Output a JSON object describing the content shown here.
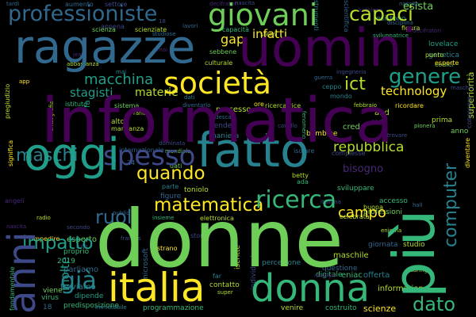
{
  "title": "word cloud",
  "palette": {
    "yellow": "#fde725",
    "lime": "#b5de2b",
    "green": "#6ece58",
    "teal": "#35b779",
    "cyan": "#1f9e89",
    "blue": "#26828e",
    "steel": "#31688e",
    "indigo": "#3e4989",
    "violet": "#482878",
    "purple": "#440154"
  },
  "words": [
    {
      "text": "donne"
    },
    {
      "text": "informatica"
    },
    {
      "text": "più"
    },
    {
      "text": "uomini"
    },
    {
      "text": "ragazze"
    },
    {
      "text": "oggi"
    },
    {
      "text": "fatto"
    },
    {
      "text": "italia"
    },
    {
      "text": "donna"
    },
    {
      "text": "giovani"
    },
    {
      "text": "società"
    },
    {
      "text": "anni"
    },
    {
      "text": "professioniste"
    },
    {
      "text": "capaci"
    },
    {
      "text": "maschi"
    },
    {
      "text": "ricerca"
    },
    {
      "text": "genere"
    },
    {
      "text": "già"
    },
    {
      "text": "spesso"
    },
    {
      "text": "computer"
    },
    {
      "text": "impatto"
    },
    {
      "text": "ruoli"
    },
    {
      "text": "matematica"
    },
    {
      "text": "dato"
    },
    {
      "text": "quando"
    },
    {
      "text": "macchina"
    },
    {
      "text": "infatti"
    },
    {
      "text": "ict"
    },
    {
      "text": "repubblica"
    },
    {
      "text": "stagisti"
    },
    {
      "text": "campo"
    },
    {
      "text": "gap"
    },
    {
      "text": "materie"
    },
    {
      "text": "technology"
    },
    {
      "text": "bisogno"
    },
    {
      "text": "molte"
    },
    {
      "text": "superiorità"
    },
    {
      "text": "esista"
    },
    {
      "text": "esistono"
    },
    {
      "text": "diventare"
    },
    {
      "text": "fondamentale"
    },
    {
      "text": "conoscere"
    },
    {
      "text": "information"
    },
    {
      "text": "programmazione"
    },
    {
      "text": "predisposizione"
    },
    {
      "text": "immutabile"
    },
    {
      "text": "costruito"
    },
    {
      "text": "scienze"
    },
    {
      "text": "venire"
    },
    {
      "text": "virus"
    },
    {
      "text": "dipende"
    },
    {
      "text": "viene"
    },
    {
      "text": "microsoft"
    },
    {
      "text": "iscritte"
    },
    {
      "text": "individuale"
    },
    {
      "text": "scientifica"
    },
    {
      "text": "maschile"
    },
    {
      "text": "maschili"
    },
    {
      "text": "eniac"
    },
    {
      "text": "offerta"
    },
    {
      "text": "giornata"
    },
    {
      "text": "studio"
    },
    {
      "text": "esperto"
    },
    {
      "text": "parliamo"
    },
    {
      "text": "proprio"
    },
    {
      "text": "troviamo"
    },
    {
      "text": "impedire"
    },
    {
      "text": "angeli"
    },
    {
      "text": "significa"
    },
    {
      "text": "crittografia"
    },
    {
      "text": "pregiudizio"
    },
    {
      "text": "abbastanza"
    },
    {
      "text": "tardi"
    },
    {
      "text": "aumento"
    },
    {
      "text": "settore"
    },
    {
      "text": "appena"
    },
    {
      "text": "scientifica"
    },
    {
      "text": "lavori"
    },
    {
      "text": "scienza"
    },
    {
      "text": "scienziate"
    },
    {
      "text": "capacità"
    },
    {
      "text": "stem"
    },
    {
      "text": "strumenti"
    },
    {
      "text": "sviluppatrice"
    },
    {
      "text": "disciplina"
    },
    {
      "text": "lovelace"
    },
    {
      "text": "genetica"
    },
    {
      "text": "codici"
    },
    {
      "text": "punto"
    },
    {
      "text": "esperte"
    },
    {
      "text": "culturale"
    },
    {
      "text": "sebbene"
    },
    {
      "text": "sistema"
    },
    {
      "text": "istituto"
    },
    {
      "text": "diventarlo"
    },
    {
      "text": "ricercatrice"
    },
    {
      "text": "ricordare"
    },
    {
      "text": "febbraio"
    },
    {
      "text": "mondo"
    },
    {
      "text": "ore"
    },
    {
      "text": "guerra"
    },
    {
      "text": "ingegneria"
    },
    {
      "text": "ceppo"
    },
    {
      "text": "figura"
    },
    {
      "text": "prima"
    },
    {
      "text": "pionera"
    },
    {
      "text": "trovare"
    },
    {
      "text": "sorta"
    },
    {
      "text": "bambine"
    },
    {
      "text": "fenomeno"
    },
    {
      "text": "processo"
    },
    {
      "text": "alto"
    },
    {
      "text": "gender"
    },
    {
      "text": "cavallo"
    },
    {
      "text": "tedesca"
    },
    {
      "text": "parte"
    },
    {
      "text": "toniolo"
    },
    {
      "text": "figure"
    },
    {
      "text": "accesso"
    },
    {
      "text": "buona"
    },
    {
      "text": "professioni"
    },
    {
      "text": "sviluppare"
    },
    {
      "text": "complesse"
    },
    {
      "text": "mancanza"
    },
    {
      "text": "maniera"
    },
    {
      "text": "isolare"
    },
    {
      "text": "internazionale"
    },
    {
      "text": "mondiale"
    },
    {
      "text": "dominata"
    },
    {
      "text": "percezione"
    },
    {
      "text": "questione"
    },
    {
      "text": "enigma"
    },
    {
      "text": "turing"
    },
    {
      "text": "contatto"
    },
    {
      "text": "digitale"
    },
    {
      "text": "storia"
    },
    {
      "text": "strano"
    },
    {
      "text": "celebrata"
    },
    {
      "text": "italiana"
    },
    {
      "text": "elettronica"
    },
    {
      "text": "insieme"
    },
    {
      "text": "radio"
    },
    {
      "text": "public"
    },
    {
      "text": "betty"
    },
    {
      "text": "anno"
    },
    {
      "text": "crede"
    },
    {
      "text": "and"
    },
    {
      "text": "fa"
    },
    {
      "text": "rarità"
    },
    {
      "text": "app"
    },
    {
      "text": "jean"
    },
    {
      "text": "ruth"
    },
    {
      "text": "frances"
    },
    {
      "text": "super"
    },
    {
      "text": "far"
    },
    {
      "text": "marilyn"
    },
    {
      "text": "2019"
    },
    {
      "text": "18"
    },
    {
      "text": "24"
    },
    {
      "text": "ada"
    },
    {
      "text": "kathleen"
    },
    {
      "text": "cosa"
    },
    {
      "text": "femminile"
    },
    {
      "text": "inizio"
    },
    {
      "text": "secondo"
    },
    {
      "text": "nascita"
    },
    {
      "text": "decifratori"
    },
    {
      "text": "dati"
    },
    {
      "text": "mai"
    },
    {
      "text": "alan"
    },
    {
      "text": "studiose"
    },
    {
      "text": "hall"
    }
  ]
}
